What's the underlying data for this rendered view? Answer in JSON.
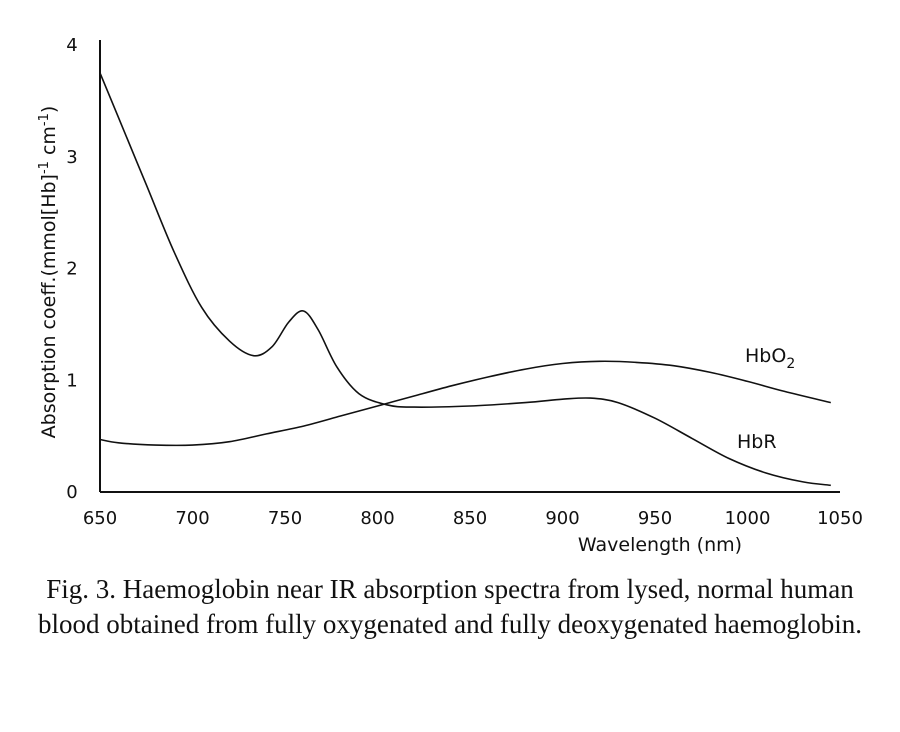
{
  "chart_data": {
    "type": "line",
    "xlabel": "Wavelength (nm)",
    "ylabel": "Absorption coeff.(mmol[Hb]-1 cm-1)",
    "xlim": [
      650,
      1050
    ],
    "ylim": [
      0,
      4
    ],
    "x_ticks": [
      650,
      700,
      750,
      800,
      850,
      900,
      950,
      1000,
      1050
    ],
    "y_ticks": [
      0,
      1,
      2,
      3,
      4
    ],
    "grid": false,
    "series": [
      {
        "name": "HbO2",
        "x": [
          650,
          660,
          680,
          700,
          720,
          740,
          760,
          780,
          800,
          820,
          840,
          860,
          880,
          900,
          920,
          940,
          960,
          980,
          1000,
          1020,
          1045
        ],
        "y": [
          0.47,
          0.44,
          0.42,
          0.42,
          0.45,
          0.52,
          0.59,
          0.68,
          0.77,
          0.86,
          0.95,
          1.03,
          1.1,
          1.15,
          1.17,
          1.16,
          1.13,
          1.07,
          0.99,
          0.9,
          0.8
        ]
      },
      {
        "name": "HbR",
        "x": [
          650,
          660,
          675,
          690,
          705,
          720,
          733,
          743,
          752,
          760,
          768,
          778,
          790,
          805,
          820,
          850,
          880,
          900,
          915,
          930,
          950,
          970,
          990,
          1010,
          1030,
          1045
        ],
        "y": [
          3.75,
          3.35,
          2.75,
          2.15,
          1.65,
          1.35,
          1.22,
          1.3,
          1.52,
          1.62,
          1.45,
          1.12,
          0.88,
          0.78,
          0.76,
          0.77,
          0.8,
          0.83,
          0.84,
          0.8,
          0.66,
          0.48,
          0.3,
          0.17,
          0.09,
          0.06
        ]
      }
    ]
  },
  "ylabel_parts": {
    "main": "Absorption coeff.(mmol[Hb]",
    "sup1": "-1",
    "mid": " cm",
    "sup2": "-1",
    "end": ")"
  },
  "series_labels": {
    "hbo2_base": "HbO",
    "hbo2_sub": "2",
    "hbr": "HbR"
  },
  "caption": "Fig. 3. Haemoglobin near IR absorption spectra from lysed, normal human blood obtained from fully oxygenated and fully deoxygenated haemoglobin."
}
